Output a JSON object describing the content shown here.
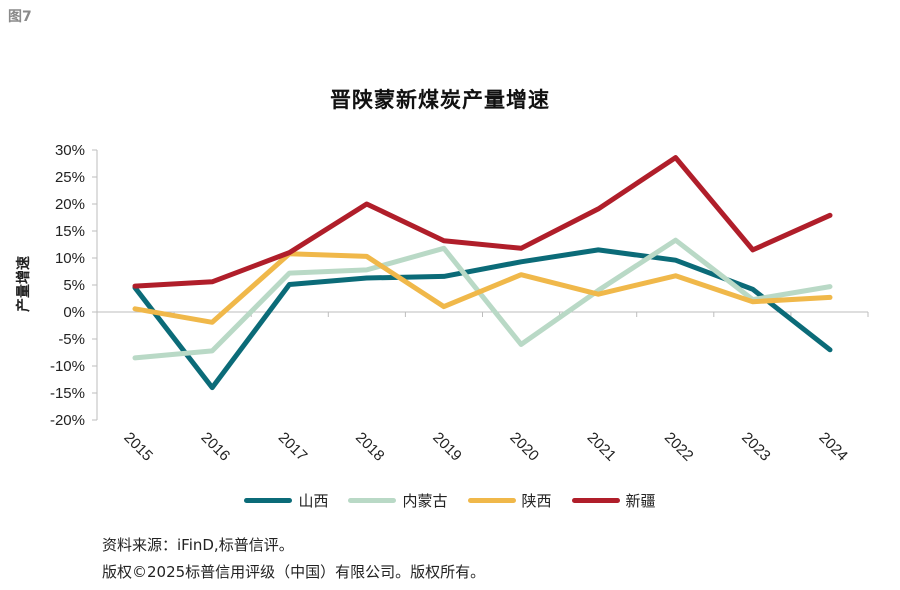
{
  "figure_label": "图7",
  "chart_data": {
    "type": "line",
    "title": "晋陕蒙新煤炭产量增速",
    "ylabel": "产量增速",
    "xlabel": "",
    "categories": [
      "2015",
      "2016",
      "2017",
      "2018",
      "2019",
      "2020",
      "2021",
      "2022",
      "2023",
      "2024"
    ],
    "ylim": [
      -20,
      30
    ],
    "yticks": [
      30,
      25,
      20,
      15,
      10,
      5,
      0,
      -5,
      -10,
      -15,
      -20
    ],
    "ytick_labels": [
      "30%",
      "25%",
      "20%",
      "15%",
      "10%",
      "5%",
      "0%",
      "-5%",
      "-10%",
      "-15%",
      "-20%"
    ],
    "grid": false,
    "legend_position": "bottom",
    "series": [
      {
        "name": "山西",
        "color": "#0b6b78",
        "values": [
          4.5,
          -14.0,
          5.1,
          6.3,
          6.6,
          9.3,
          11.5,
          9.6,
          4.2,
          -7.0
        ]
      },
      {
        "name": "内蒙古",
        "color": "#b9d9c6",
        "values": [
          -8.5,
          -7.2,
          7.2,
          7.8,
          11.8,
          -6.0,
          4.0,
          13.3,
          2.3,
          4.7
        ]
      },
      {
        "name": "陕西",
        "color": "#f0b84a",
        "values": [
          0.6,
          -1.9,
          10.8,
          10.3,
          1.0,
          6.9,
          3.3,
          6.7,
          1.9,
          2.7
        ]
      },
      {
        "name": "新疆",
        "color": "#b01e2a",
        "values": [
          4.8,
          5.6,
          11.0,
          20.0,
          13.2,
          11.8,
          19.1,
          28.6,
          11.5,
          17.9
        ]
      }
    ]
  },
  "source_text": "资料来源：iFinD,标普信评。",
  "copyright_text": "版权©2025标普信用评级（中国）有限公司。版权所有。"
}
